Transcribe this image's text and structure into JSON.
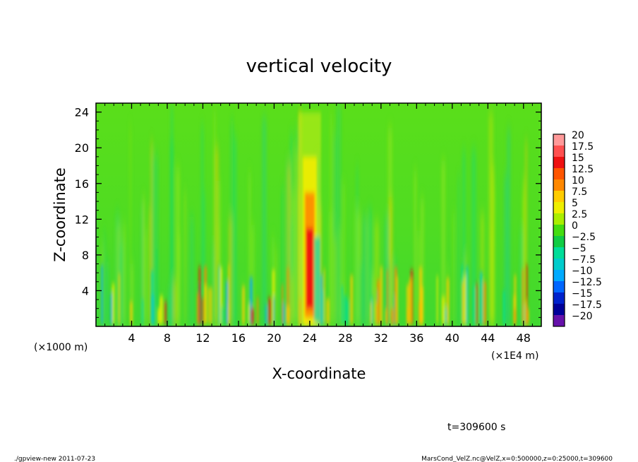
{
  "chart_data": {
    "type": "heatmap",
    "title": "vertical velocity",
    "xlabel": "X-coordinate",
    "ylabel": "Z-coordinate",
    "x_unit_left": "(×1000 m)",
    "x_unit_right": "(×1E4 m)",
    "xlim": [
      0,
      50
    ],
    "ylim": [
      0,
      25
    ],
    "x_ticks": [
      4,
      8,
      12,
      16,
      20,
      24,
      28,
      32,
      36,
      40,
      44,
      48
    ],
    "y_ticks": [
      4,
      8,
      12,
      16,
      20,
      24
    ],
    "colorbar": {
      "levels": [
        "20",
        "17.5",
        "15",
        "12.5",
        "10",
        "7.5",
        "5",
        "2.5",
        "0",
        "−2.5",
        "−5",
        "−7.5",
        "−10",
        "−12.5",
        "−15",
        "−17.5",
        "−20"
      ],
      "colors": [
        "#ff9999",
        "#ff5050",
        "#ee1111",
        "#ff5500",
        "#ff8800",
        "#ffcc00",
        "#eeee00",
        "#aaee00",
        "#44dd11",
        "#11cc44",
        "#00dd99",
        "#00cccc",
        "#00aaff",
        "#0066ff",
        "#0022cc",
        "#000099",
        "#6611aa"
      ]
    },
    "features": {
      "main_updraft_x": 24,
      "main_updraft_peak_value": 17.5
    }
  },
  "annotations": {
    "time_label": "t=309600 s",
    "footer_left": "./gpview-new   2011-07-23",
    "footer_right": "MarsCond_VelZ.nc@VelZ,x=0:500000,z=0:25000,t=309600"
  }
}
